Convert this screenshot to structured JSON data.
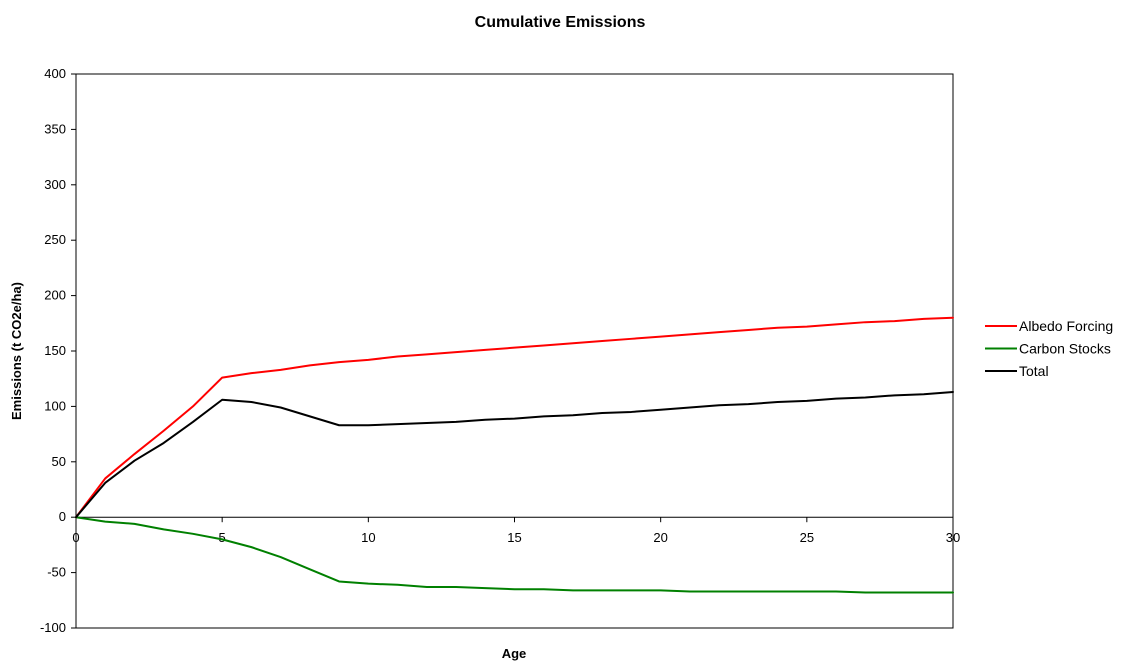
{
  "chart_data": {
    "type": "line",
    "title": "Cumulative Emissions",
    "xlabel": "Age",
    "ylabel": "Emissions (t CO2e/ha)",
    "xlim": [
      0,
      30
    ],
    "ylim": [
      -100,
      400
    ],
    "x_ticks": [
      0,
      5,
      10,
      15,
      20,
      25,
      30
    ],
    "y_ticks": [
      -100,
      -50,
      0,
      50,
      100,
      150,
      200,
      250,
      300,
      350,
      400
    ],
    "grid": false,
    "legend_position": "right",
    "x": [
      0,
      1,
      2,
      3,
      4,
      5,
      6,
      7,
      8,
      9,
      10,
      11,
      12,
      13,
      14,
      15,
      16,
      17,
      18,
      19,
      20,
      21,
      22,
      23,
      24,
      25,
      26,
      27,
      28,
      29,
      30
    ],
    "series": [
      {
        "name": "Albedo Forcing",
        "color": "#ff0000",
        "values": [
          0,
          35,
          57,
          78,
          100,
          126,
          130,
          133,
          137,
          140,
          142,
          145,
          147,
          149,
          151,
          153,
          155,
          157,
          159,
          161,
          163,
          165,
          167,
          169,
          171,
          172,
          174,
          176,
          177,
          179,
          180
        ]
      },
      {
        "name": "Carbon Stocks",
        "color": "#008000",
        "values": [
          0,
          -4,
          -6,
          -11,
          -15,
          -20,
          -27,
          -36,
          -47,
          -58,
          -60,
          -61,
          -63,
          -63,
          -64,
          -65,
          -65,
          -66,
          -66,
          -66,
          -66,
          -67,
          -67,
          -67,
          -67,
          -67,
          -67,
          -68,
          -68,
          -68,
          -68
        ]
      },
      {
        "name": "Total",
        "color": "#000000",
        "values": [
          0,
          31,
          51,
          67,
          86,
          106,
          104,
          99,
          91,
          83,
          83,
          84,
          85,
          86,
          88,
          89,
          91,
          92,
          94,
          95,
          97,
          99,
          101,
          102,
          104,
          105,
          107,
          108,
          110,
          111,
          113
        ]
      }
    ]
  }
}
